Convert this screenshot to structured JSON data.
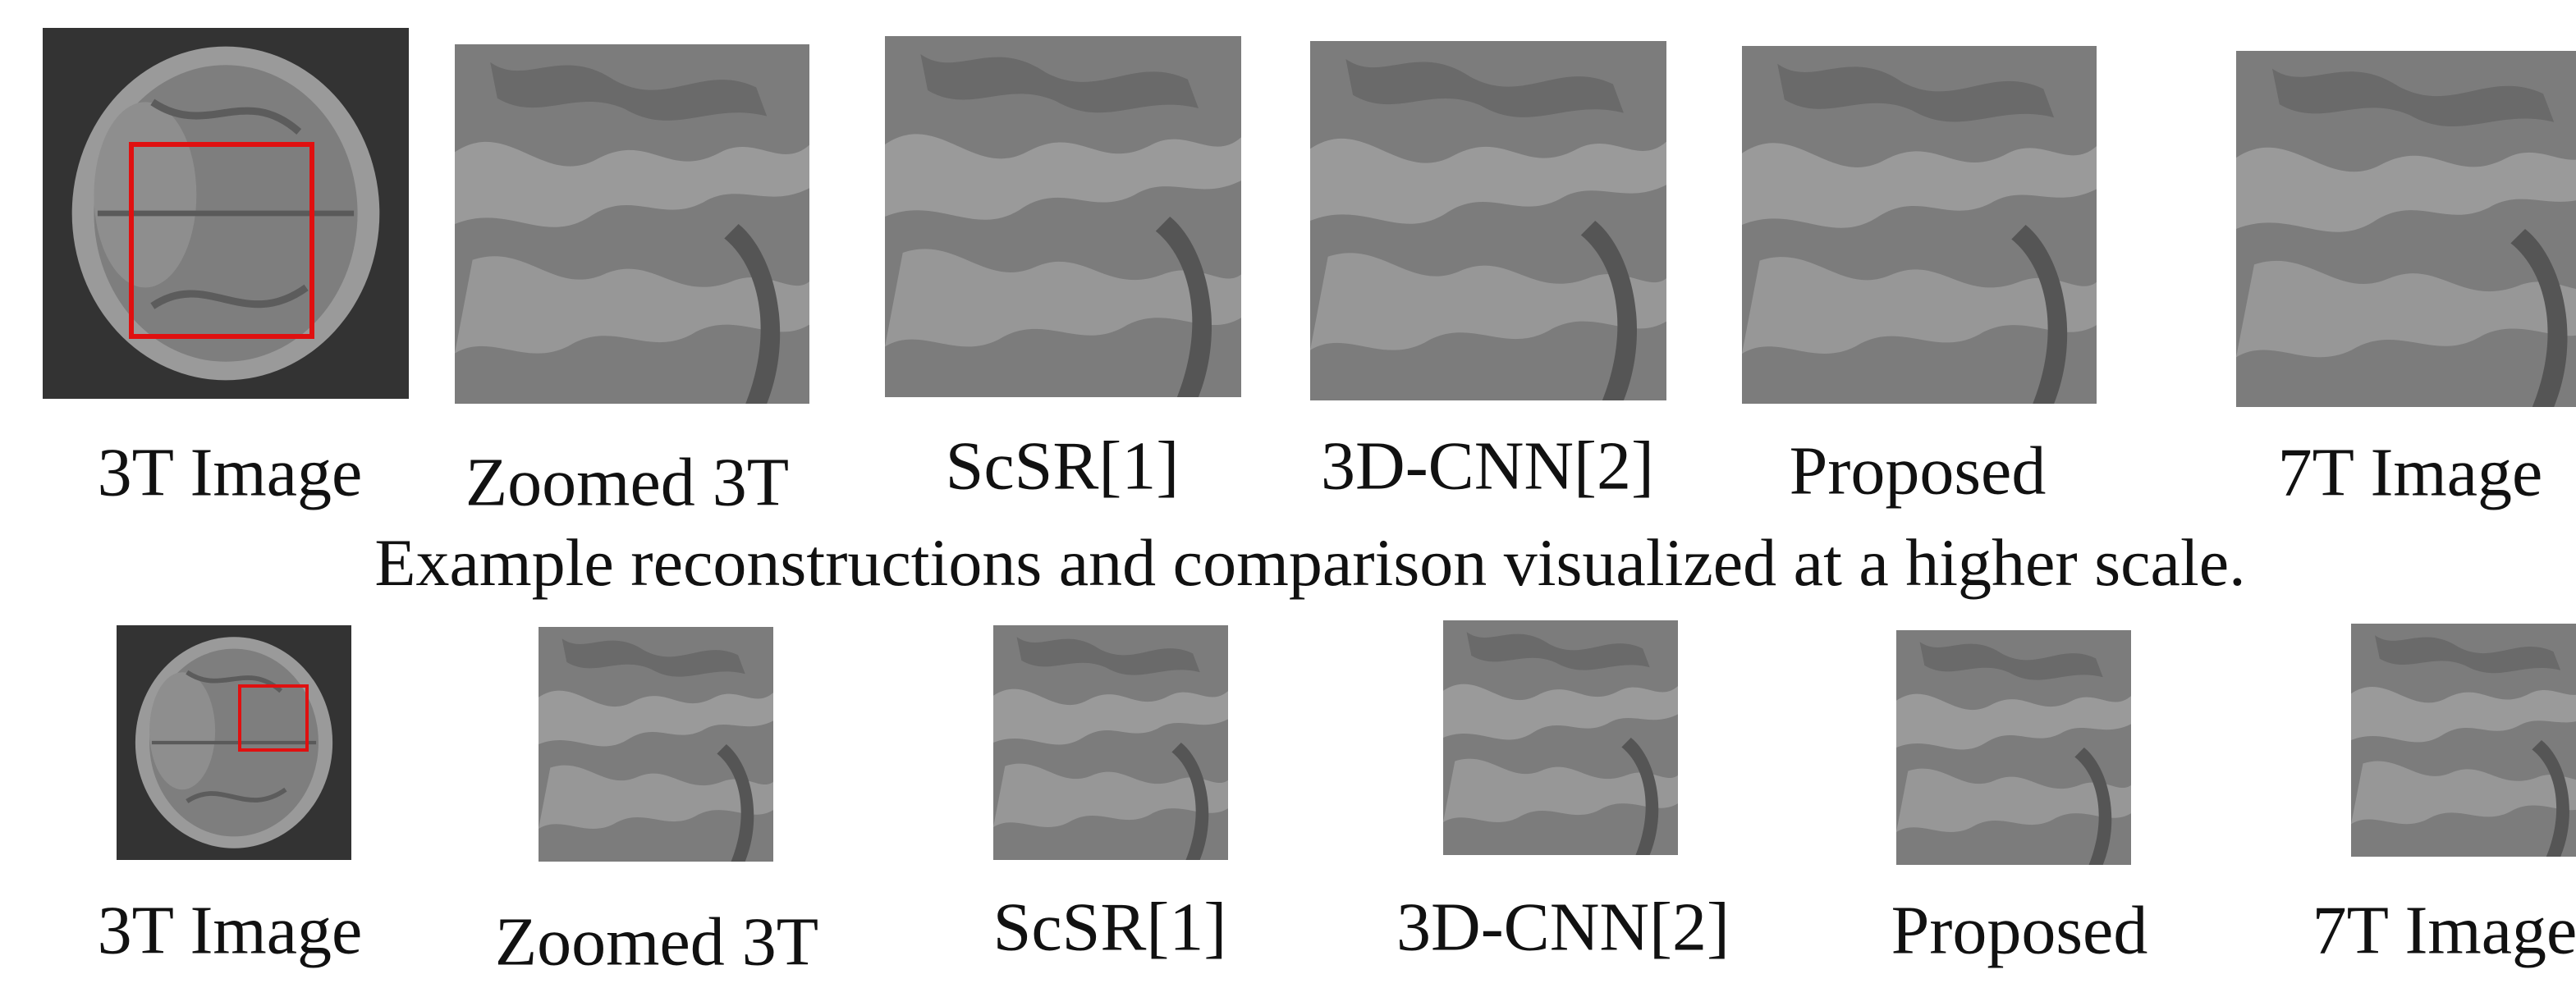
{
  "rows": [
    {
      "labels": [
        "3T Image",
        "Zoomed 3T",
        "ScSR[1]",
        "3D-CNN[2]",
        "Proposed",
        "7T Image"
      ]
    },
    {
      "labels": [
        "3T Image",
        "Zoomed 3T",
        "ScSR[1]",
        "3D-CNN[2]",
        "Proposed",
        "7T Image"
      ]
    }
  ],
  "caption": "Example reconstructions and comparison visualized at a higher scale."
}
